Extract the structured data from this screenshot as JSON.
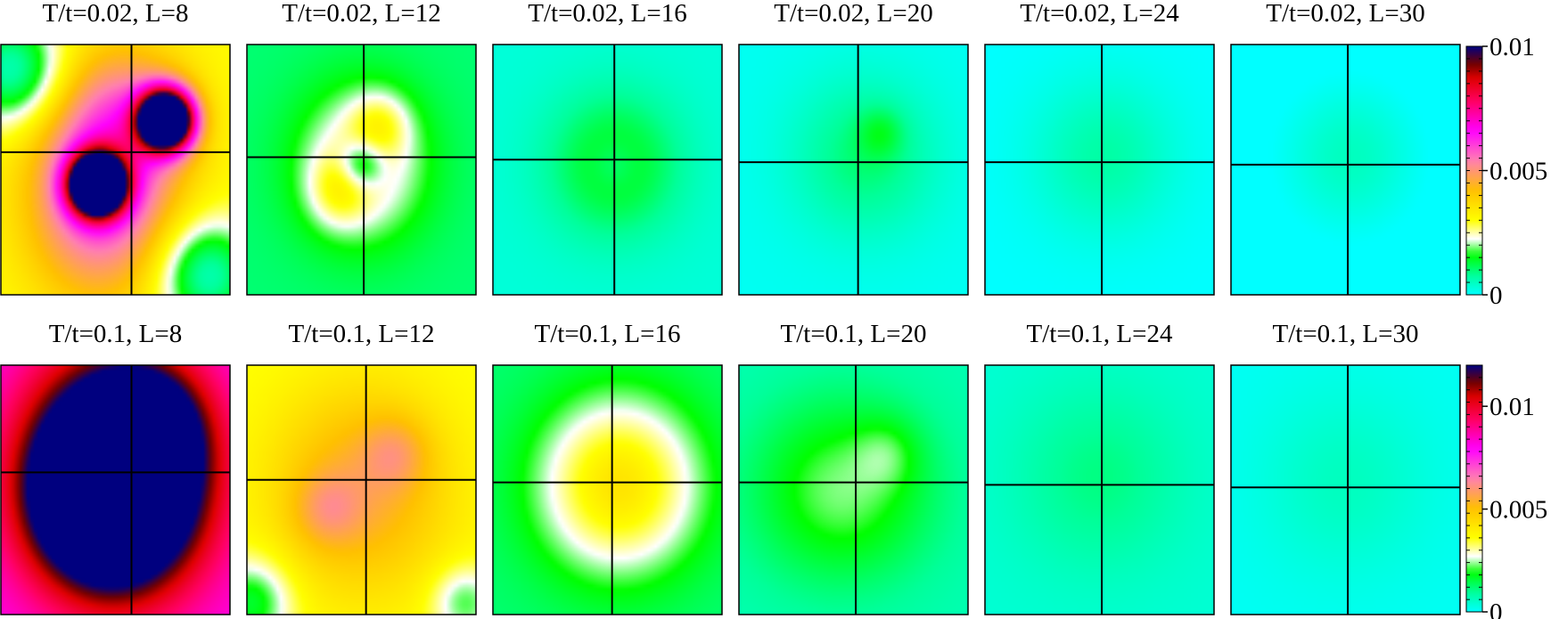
{
  "chart_data": {
    "type": "heatmap",
    "rows": [
      {
        "temperature": "T/t=0.02",
        "colorbar": {
          "ticks": [
            "0.01",
            "0.005",
            "0"
          ],
          "tick_values": [
            0.01,
            0.005,
            0
          ],
          "range": [
            0,
            0.01
          ]
        },
        "panels": [
          {
            "title": "T/t=0.02, L=8",
            "L": 8,
            "crosshair": [
              0.57,
              0.43
            ],
            "base": 0.003,
            "blobs": [
              {
                "x": 0.43,
                "y": 0.62,
                "sx": 0.22,
                "sy": 0.28,
                "amp": 0.003
              },
              {
                "x": 0.72,
                "y": 0.3,
                "sx": 0.08,
                "sy": 0.08,
                "amp": 0.012
              },
              {
                "x": 0.42,
                "y": 0.56,
                "sx": 0.08,
                "sy": 0.08,
                "amp": 0.012
              },
              {
                "x": 0.55,
                "y": 0.3,
                "sx": 0.2,
                "sy": 0.22,
                "amp": 0.002
              },
              {
                "x": 0.05,
                "y": 0.1,
                "sx": 0.15,
                "sy": 0.15,
                "amp": -0.0025
              },
              {
                "x": 0.9,
                "y": 0.92,
                "sx": 0.15,
                "sy": 0.15,
                "amp": -0.0025
              }
            ]
          },
          {
            "title": "T/t=0.02, L=12",
            "L": 12,
            "crosshair": [
              0.51,
              0.45
            ],
            "base": 0.001,
            "blobs": [
              {
                "x": 0.5,
                "y": 0.48,
                "sx": 0.2,
                "sy": 0.22,
                "amp": 0.0018
              },
              {
                "x": 0.4,
                "y": 0.58,
                "sx": 0.09,
                "sy": 0.1,
                "amp": 0.001
              },
              {
                "x": 0.58,
                "y": 0.32,
                "sx": 0.09,
                "sy": 0.09,
                "amp": 0.001
              },
              {
                "x": 0.5,
                "y": 0.48,
                "sx": 0.07,
                "sy": 0.07,
                "amp": -0.0016
              }
            ]
          },
          {
            "title": "T/t=0.02, L=16",
            "L": 16,
            "crosshair": [
              0.53,
              0.46
            ],
            "base": 0.0003,
            "blobs": [
              {
                "x": 0.53,
                "y": 0.48,
                "sx": 0.2,
                "sy": 0.2,
                "amp": 0.0013
              },
              {
                "x": 0.53,
                "y": 0.48,
                "sx": 0.07,
                "sy": 0.07,
                "amp": -0.0005
              }
            ]
          },
          {
            "title": "T/t=0.02, L=20",
            "L": 20,
            "crosshair": [
              0.52,
              0.47
            ],
            "base": 0.0001,
            "blobs": [
              {
                "x": 0.55,
                "y": 0.45,
                "sx": 0.22,
                "sy": 0.22,
                "amp": 0.0009
              },
              {
                "x": 0.62,
                "y": 0.35,
                "sx": 0.07,
                "sy": 0.07,
                "amp": 0.0006
              }
            ]
          },
          {
            "title": "T/t=0.02, L=24",
            "L": 24,
            "crosshair": [
              0.51,
              0.47
            ],
            "base": 0.0,
            "blobs": [
              {
                "x": 0.52,
                "y": 0.45,
                "sx": 0.22,
                "sy": 0.22,
                "amp": 0.0007
              }
            ]
          },
          {
            "title": "T/t=0.02, L=30",
            "L": 30,
            "crosshair": [
              0.51,
              0.48
            ],
            "base": -0.0002,
            "blobs": [
              {
                "x": 0.52,
                "y": 0.45,
                "sx": 0.22,
                "sy": 0.22,
                "amp": 0.0007
              }
            ]
          }
        ]
      },
      {
        "temperature": "T/t=0.1",
        "colorbar": {
          "ticks": [
            "0.01",
            "0.005",
            "0"
          ],
          "tick_values": [
            0.01,
            0.005,
            0
          ],
          "range": [
            0,
            0.012
          ]
        },
        "panels": [
          {
            "title": "T/t=0.1, L=8",
            "L": 8,
            "crosshair": [
              0.57,
              0.43
            ],
            "base": 0.008,
            "blobs": [
              {
                "x": 0.5,
                "y": 0.45,
                "sx": 0.26,
                "sy": 0.3,
                "amp": 0.01
              },
              {
                "x": 0.45,
                "y": 0.55,
                "sx": 0.18,
                "sy": 0.18,
                "amp": 0.004
              },
              {
                "x": 0.65,
                "y": 0.25,
                "sx": 0.15,
                "sy": 0.15,
                "amp": 0.003
              }
            ]
          },
          {
            "title": "T/t=0.1, L=12",
            "L": 12,
            "crosshair": [
              0.52,
              0.46
            ],
            "base": 0.0035,
            "blobs": [
              {
                "x": 0.5,
                "y": 0.5,
                "sx": 0.28,
                "sy": 0.3,
                "amp": 0.002
              },
              {
                "x": 0.65,
                "y": 0.35,
                "sx": 0.1,
                "sy": 0.1,
                "amp": 0.001
              },
              {
                "x": 0.35,
                "y": 0.58,
                "sx": 0.1,
                "sy": 0.1,
                "amp": 0.001
              },
              {
                "x": 0.02,
                "y": 0.95,
                "sx": 0.12,
                "sy": 0.12,
                "amp": -0.002
              },
              {
                "x": 0.95,
                "y": 0.95,
                "sx": 0.1,
                "sy": 0.1,
                "amp": -0.0015
              }
            ]
          },
          {
            "title": "T/t=0.1, L=16",
            "L": 16,
            "crosshair": [
              0.52,
              0.47
            ],
            "base": 0.0012,
            "blobs": [
              {
                "x": 0.55,
                "y": 0.48,
                "sx": 0.25,
                "sy": 0.25,
                "amp": 0.003
              }
            ]
          },
          {
            "title": "T/t=0.1, L=20",
            "L": 20,
            "crosshair": [
              0.51,
              0.47
            ],
            "base": 0.0007,
            "blobs": [
              {
                "x": 0.45,
                "y": 0.5,
                "sx": 0.28,
                "sy": 0.26,
                "amp": 0.0016
              },
              {
                "x": 0.65,
                "y": 0.35,
                "sx": 0.1,
                "sy": 0.1,
                "amp": 0.0006
              }
            ]
          },
          {
            "title": "T/t=0.1, L=24",
            "L": 24,
            "crosshair": [
              0.51,
              0.48
            ],
            "base": 0.0004,
            "blobs": [
              {
                "x": 0.5,
                "y": 0.45,
                "sx": 0.26,
                "sy": 0.26,
                "amp": 0.0007
              }
            ]
          },
          {
            "title": "T/t=0.1, L=30",
            "L": 30,
            "crosshair": [
              0.51,
              0.49
            ],
            "base": 0.0001,
            "blobs": [
              {
                "x": 0.5,
                "y": 0.47,
                "sx": 0.26,
                "sy": 0.26,
                "amp": 0.0005
              }
            ]
          }
        ]
      }
    ],
    "colormap": [
      {
        "t": 0.0,
        "color": "#00ffff"
      },
      {
        "t": 0.08,
        "color": "#00ff99"
      },
      {
        "t": 0.16,
        "color": "#00ff00"
      },
      {
        "t": 0.225,
        "color": "#ffffff"
      },
      {
        "t": 0.3,
        "color": "#ffff00"
      },
      {
        "t": 0.42,
        "color": "#ffc000"
      },
      {
        "t": 0.54,
        "color": "#ff80b0"
      },
      {
        "t": 0.66,
        "color": "#ff00ff"
      },
      {
        "t": 0.78,
        "color": "#ff0060"
      },
      {
        "t": 0.87,
        "color": "#e00000"
      },
      {
        "t": 0.93,
        "color": "#700000"
      },
      {
        "t": 1.0,
        "color": "#00007f"
      }
    ]
  }
}
